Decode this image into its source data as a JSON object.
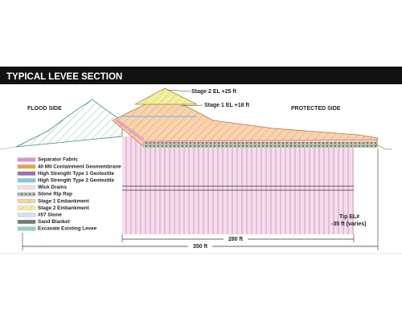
{
  "header": {
    "title": "TYPICAL LEVEE SECTION"
  },
  "labels": {
    "flood_side": "FLOOD SIDE",
    "protected_side": "PROTECTED SIDE",
    "stage2": "Stage 2 EL +25 ft",
    "stage1": "Stage 1 EL +18 ft",
    "tip_1": "Tip EL#",
    "tip_2": "-35 ft (varies)"
  },
  "dimensions": {
    "inner": "280 ft",
    "outer": "350 ft"
  },
  "legend": [
    "Separator Fabric",
    "40 Mil Containment Geomembrane",
    "High Strength Type 1 Geotextile",
    "High Strength Type 2 Geotextile",
    "Wick Drains",
    "Stone Rip Rap",
    "Stage 1 Embankment",
    "Stage 2 Embankment",
    "#57 Stone",
    "Sand Blanket",
    "Excavate Existing Levee"
  ]
}
